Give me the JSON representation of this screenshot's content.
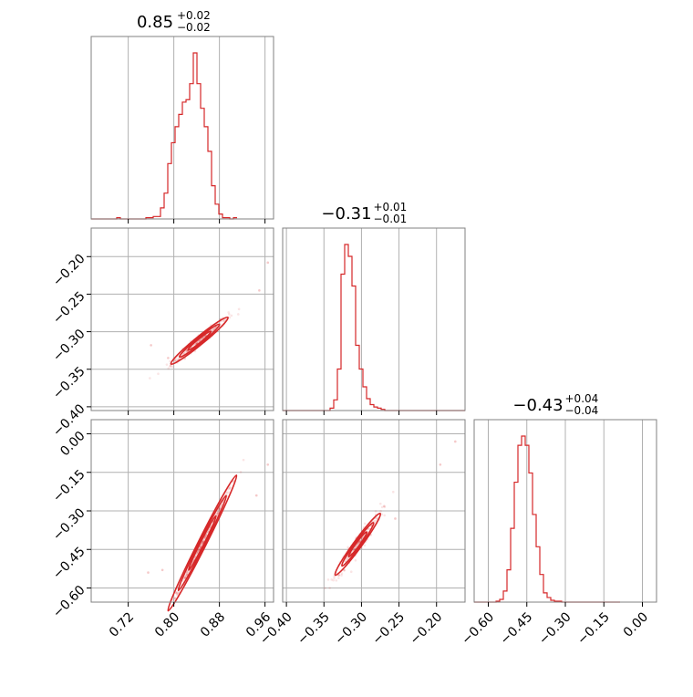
{
  "chart_data": {
    "type": "corner",
    "titles": [
      {
        "main": "0.85",
        "sup": "+0.02",
        "sub": "−0.02"
      },
      {
        "main": "−0.31",
        "sup": "+0.01",
        "sub": "−0.01"
      },
      {
        "main": "−0.43",
        "sup": "+0.04",
        "sub": "−0.04"
      }
    ],
    "color": "#d62728",
    "grid": true,
    "params": [
      {
        "range": [
          0.655,
          0.975
        ],
        "ticks": [
          0.72,
          0.8,
          0.88,
          0.96
        ],
        "tick_labels": [
          "0.72",
          "0.80",
          "0.88",
          "0.96"
        ]
      },
      {
        "range": [
          -0.405,
          -0.162
        ],
        "ticks": [
          -0.4,
          -0.35,
          -0.3,
          -0.25,
          -0.2
        ],
        "tick_labels": [
          "−0.40",
          "−0.35",
          "−0.30",
          "−0.25",
          "−0.20"
        ]
      },
      {
        "range": [
          -0.655,
          0.055
        ],
        "ticks": [
          -0.6,
          -0.45,
          -0.3,
          -0.15,
          0.0
        ],
        "tick_labels": [
          "−0.60",
          "−0.45",
          "−0.30",
          "−0.15",
          "0.00"
        ]
      }
    ],
    "histograms": [
      {
        "bin_start": 0.655,
        "bin_width": 0.0064,
        "counts": [
          0,
          0,
          0,
          0,
          0,
          0,
          0,
          1,
          0,
          0,
          0,
          0,
          0,
          0,
          0,
          1,
          1,
          2,
          2,
          9,
          21,
          45,
          62,
          75,
          85,
          95,
          97,
          110,
          135,
          110,
          90,
          75,
          55,
          27,
          12,
          4,
          1,
          1,
          0,
          1
        ]
      },
      {
        "bin_start": -0.405,
        "bin_width": 0.00486,
        "counts": [
          0,
          0,
          0,
          0,
          0,
          0,
          0,
          0,
          0,
          0,
          0,
          0,
          0,
          2,
          9,
          35,
          115,
          140,
          130,
          105,
          55,
          35,
          20,
          10,
          5,
          3,
          2,
          1,
          0,
          0,
          0,
          0,
          0,
          0,
          0,
          0,
          0,
          0,
          0,
          0,
          0,
          0,
          0,
          0,
          0,
          0,
          0,
          0,
          0,
          0
        ]
      },
      {
        "bin_start": -0.655,
        "bin_width": 0.0142,
        "counts": [
          0,
          0,
          0,
          0,
          0,
          0,
          1,
          3,
          12,
          35,
          80,
          130,
          170,
          180,
          170,
          140,
          95,
          60,
          30,
          10,
          5,
          2,
          1,
          1,
          0,
          0,
          0,
          0,
          0,
          0,
          0,
          0,
          0,
          0,
          0,
          0,
          0,
          0,
          0,
          0
        ]
      }
    ],
    "scatter_pairs": [
      {
        "row": 1,
        "col": 0,
        "center": [
          0.845,
          -0.312
        ],
        "spread_main": 0.025,
        "slope": 0.62,
        "spread_perp": 0.0035,
        "outliers": [
          [
            0.95,
            -0.245
          ],
          [
            0.965,
            -0.208
          ],
          [
            0.76,
            -0.318
          ],
          [
            0.79,
            -0.335
          ]
        ]
      },
      {
        "row": 2,
        "col": 0,
        "center": [
          0.85,
          -0.425
        ],
        "spread_main": 0.03,
        "slope": 4.4,
        "spread_perp": 0.008,
        "outliers": [
          [
            0.945,
            -0.24
          ],
          [
            0.965,
            -0.12
          ],
          [
            0.755,
            -0.54
          ],
          [
            0.78,
            -0.53
          ]
        ]
      },
      {
        "row": 2,
        "col": 1,
        "center": [
          -0.305,
          -0.43
        ],
        "spread_main": 0.015,
        "slope": 4.0,
        "spread_perp": 0.018,
        "outliers": [
          [
            -0.175,
            -0.03
          ],
          [
            -0.195,
            -0.12
          ],
          [
            -0.33,
            -0.55
          ],
          [
            -0.255,
            -0.33
          ]
        ]
      }
    ]
  }
}
